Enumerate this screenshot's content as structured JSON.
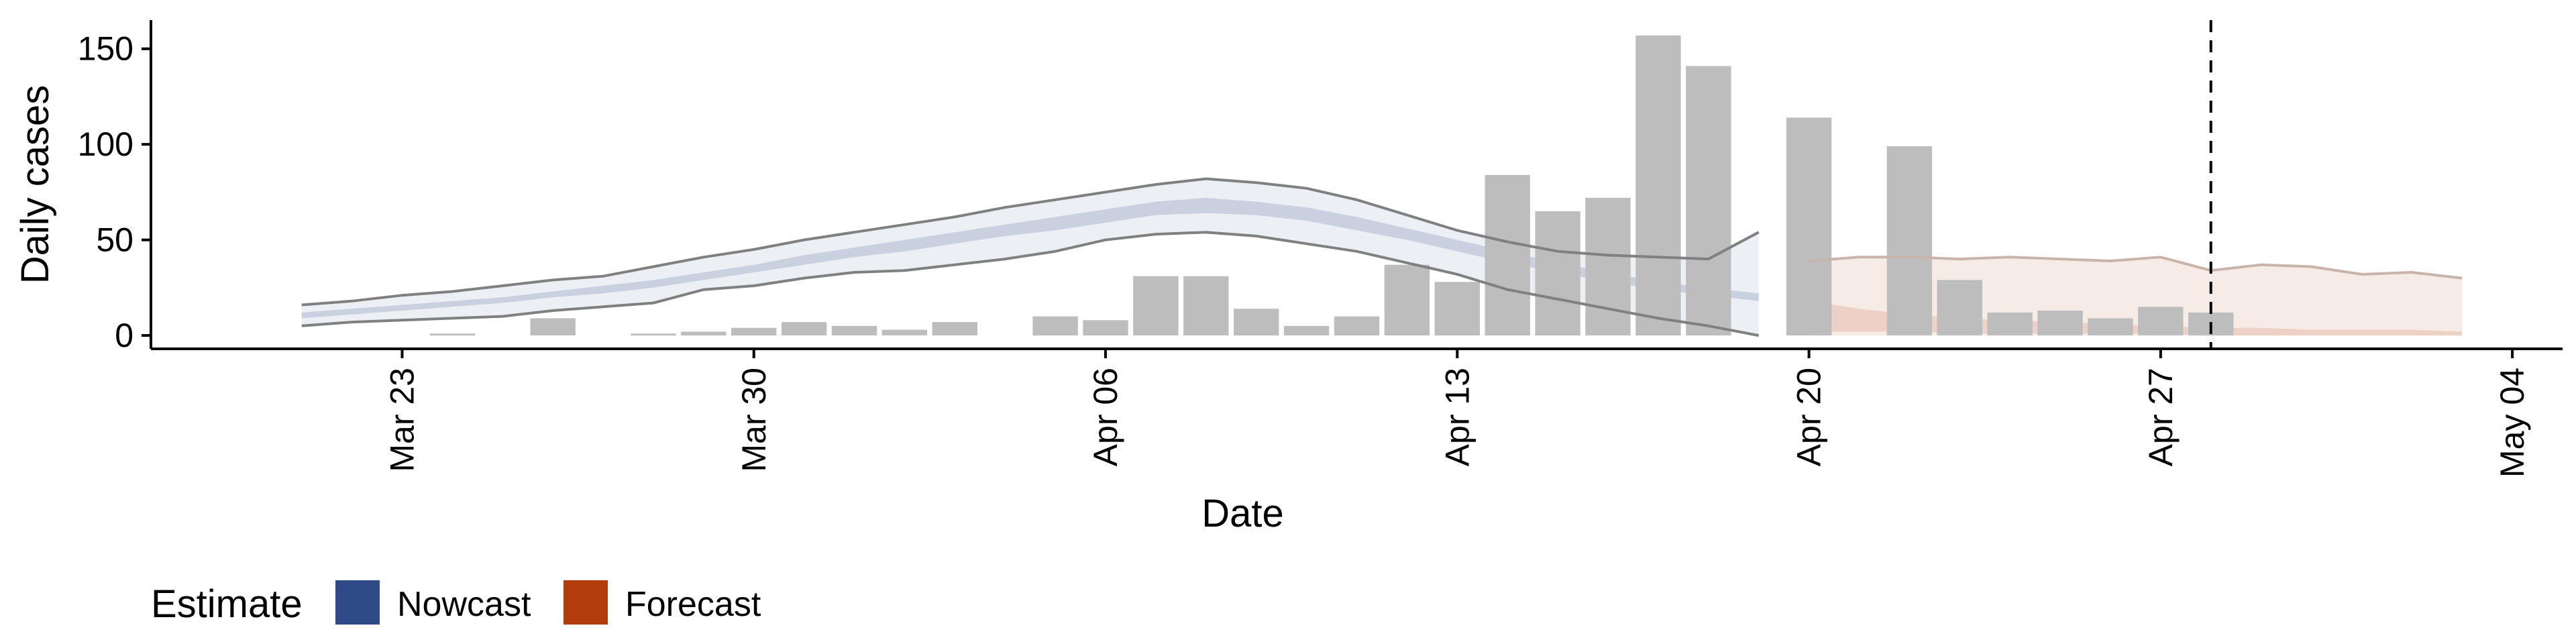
{
  "chart_data": {
    "type": "bar",
    "xlabel": "Date",
    "ylabel": "Daily cases",
    "xlim": [
      "2020-03-18",
      "2020-05-05"
    ],
    "ylim": [
      -7,
      165
    ],
    "x_ticks": [
      {
        "date": "2020-03-23",
        "label": "Mar 23"
      },
      {
        "date": "2020-03-30",
        "label": "Mar 30"
      },
      {
        "date": "2020-04-06",
        "label": "Apr 06"
      },
      {
        "date": "2020-04-13",
        "label": "Apr 13"
      },
      {
        "date": "2020-04-20",
        "label": "Apr 20"
      },
      {
        "date": "2020-04-27",
        "label": "Apr 27"
      },
      {
        "date": "2020-05-04",
        "label": "May 04"
      }
    ],
    "y_ticks": [
      0,
      50,
      100,
      150
    ],
    "bar_color": "#bdbdbd",
    "reported_cases": {
      "dates": [
        "2020-03-24",
        "2020-03-26",
        "2020-03-28",
        "2020-03-29",
        "2020-03-30",
        "2020-03-31",
        "2020-04-01",
        "2020-04-02",
        "2020-04-03",
        "2020-04-05",
        "2020-04-06",
        "2020-04-07",
        "2020-04-08",
        "2020-04-09",
        "2020-04-10",
        "2020-04-11",
        "2020-04-12",
        "2020-04-13",
        "2020-04-14",
        "2020-04-15",
        "2020-04-16",
        "2020-04-17",
        "2020-04-18",
        "2020-04-20",
        "2020-04-22",
        "2020-04-23",
        "2020-04-24",
        "2020-04-25",
        "2020-04-26",
        "2020-04-27",
        "2020-04-28"
      ],
      "values": [
        1,
        9,
        1,
        2,
        4,
        7,
        5,
        3,
        7,
        10,
        8,
        31,
        31,
        14,
        5,
        10,
        37,
        28,
        84,
        65,
        72,
        157,
        141,
        114,
        99,
        29,
        12,
        13,
        9,
        15,
        12
      ]
    },
    "nowcast": {
      "dates": [
        "2020-03-21",
        "2020-03-22",
        "2020-03-23",
        "2020-03-24",
        "2020-03-25",
        "2020-03-26",
        "2020-03-27",
        "2020-03-28",
        "2020-03-29",
        "2020-03-30",
        "2020-03-31",
        "2020-04-01",
        "2020-04-02",
        "2020-04-03",
        "2020-04-04",
        "2020-04-05",
        "2020-04-06",
        "2020-04-07",
        "2020-04-08",
        "2020-04-09",
        "2020-04-10",
        "2020-04-11",
        "2020-04-12",
        "2020-04-13",
        "2020-04-14",
        "2020-04-15",
        "2020-04-16",
        "2020-04-17",
        "2020-04-18",
        "2020-04-19"
      ],
      "outer_lower": [
        5,
        7,
        8,
        9,
        10,
        13,
        15,
        17,
        24,
        26,
        30,
        33,
        34,
        37,
        40,
        44,
        50,
        53,
        54,
        52,
        48,
        44,
        38,
        32,
        24,
        19,
        14,
        9,
        5,
        0
      ],
      "outer_upper": [
        16,
        18,
        21,
        23,
        26,
        29,
        31,
        36,
        41,
        45,
        50,
        54,
        58,
        62,
        67,
        71,
        75,
        79,
        82,
        80,
        77,
        71,
        63,
        55,
        49,
        44,
        42,
        41,
        40,
        54
      ],
      "inner_lower": [
        9,
        11,
        13,
        15,
        17,
        20,
        22,
        25,
        29,
        33,
        37,
        41,
        44,
        48,
        52,
        55,
        59,
        63,
        64,
        63,
        60,
        55,
        50,
        44,
        38,
        33,
        28,
        24,
        21,
        18
      ],
      "inner_upper": [
        12,
        14,
        16,
        18,
        20,
        23,
        26,
        29,
        33,
        37,
        42,
        46,
        50,
        54,
        58,
        62,
        66,
        70,
        72,
        70,
        67,
        62,
        56,
        50,
        44,
        38,
        33,
        28,
        25,
        22
      ],
      "median": [
        11,
        13,
        15,
        17,
        19,
        22,
        24,
        27,
        31,
        35,
        40,
        44,
        47,
        51,
        55,
        59,
        63,
        67,
        68,
        66,
        63,
        58,
        53,
        47,
        41,
        35,
        30,
        26,
        23,
        20
      ]
    },
    "forecast": {
      "dates": [
        "2020-04-20",
        "2020-04-21",
        "2020-04-22",
        "2020-04-23",
        "2020-04-24",
        "2020-04-25",
        "2020-04-26",
        "2020-04-27",
        "2020-04-28",
        "2020-04-29",
        "2020-04-30",
        "2020-05-01",
        "2020-05-02",
        "2020-05-03"
      ],
      "outer_lower": [
        0,
        0,
        0,
        0,
        0,
        0,
        0,
        0,
        0,
        0,
        0,
        0,
        0,
        0
      ],
      "outer_upper": [
        39,
        41,
        41,
        40,
        41,
        40,
        39,
        41,
        34,
        37,
        36,
        32,
        33,
        30
      ],
      "inner_lower": [
        2,
        2,
        2,
        1,
        1,
        1,
        1,
        1,
        0,
        0,
        0,
        0,
        0,
        0
      ],
      "inner_upper": [
        18,
        14,
        11,
        9,
        8,
        7,
        6,
        5,
        4,
        4,
        3,
        3,
        3,
        2
      ],
      "median": [
        12,
        10,
        8,
        7,
        6,
        5,
        5,
        4,
        3,
        3,
        3,
        2,
        2,
        2
      ]
    },
    "vline_date": "2020-04-28",
    "legend": {
      "title": "Estimate",
      "placement": "bottom-left",
      "items": [
        {
          "label": "Nowcast",
          "color": "#2e4a87"
        },
        {
          "label": "Forecast",
          "color": "#b33c0c"
        }
      ]
    }
  }
}
